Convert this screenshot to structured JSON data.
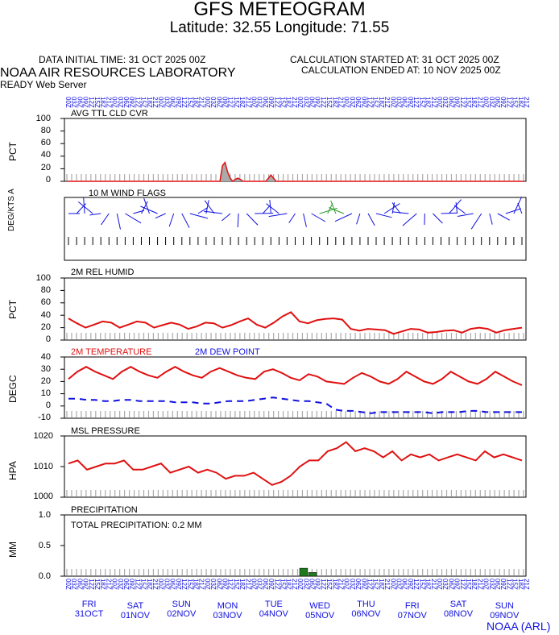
{
  "header": {
    "title": "GFS METEOGRAM",
    "subtitle": "Latitude: 32.55 Longitude:  71.55",
    "data_time": "DATA INITIAL TIME: 31 OCT 2025 00Z",
    "calc_start": "CALCULATION STARTED AT: 31 OCT 2025 00Z",
    "calc_end": "CALCULATION ENDED AT: 10 NOV 2025 00Z",
    "lab": "NOAA AIR RESOURCES LABORATORY",
    "server": "READY Web Server",
    "footer": "NOAA (ARL)"
  },
  "days": [
    {
      "name": "FRI",
      "date": "31OCT"
    },
    {
      "name": "SAT",
      "date": "01NOV"
    },
    {
      "name": "SUN",
      "date": "02NOV"
    },
    {
      "name": "MON",
      "date": "03NOV"
    },
    {
      "name": "TUE",
      "date": "04NOV"
    },
    {
      "name": "WED",
      "date": "05NOV"
    },
    {
      "name": "THU",
      "date": "06NOV"
    },
    {
      "name": "FRI",
      "date": "07NOV"
    },
    {
      "name": "SAT",
      "date": "08NOV"
    },
    {
      "name": "SUN",
      "date": "09NOV"
    }
  ],
  "hour_labels": [
    "00Z",
    "03Z",
    "06Z",
    "09Z",
    "12Z",
    "15Z",
    "18Z",
    "21Z"
  ],
  "panels": {
    "cloud": {
      "title": "AVG TTL CLD CVR",
      "ylabel": "PCT",
      "ticks": [
        "100",
        "80",
        "60",
        "40",
        "20",
        "0"
      ]
    },
    "wind": {
      "title": "10 M  WIND FLAGS",
      "ylabel": "DEG/KTS  A"
    },
    "rh": {
      "title": "2M REL HUMID",
      "ylabel": "PCT",
      "ticks": [
        "100",
        "80",
        "60",
        "40",
        "20",
        "0"
      ]
    },
    "temp": {
      "title_t": "2M TEMPERATURE",
      "title_d": "2M   DEW POINT",
      "ylabel": "DEGC",
      "ticks": [
        "40",
        "30",
        "20",
        "10",
        "0",
        "-10"
      ]
    },
    "mslp": {
      "title": "MSL PRESSURE",
      "ylabel": "HPA",
      "ticks": [
        "1020",
        "1010",
        "1000"
      ]
    },
    "precip": {
      "title": "PRECIPITATION",
      "total": "TOTAL PRECIPITATION:   0.2 MM",
      "ylabel": "MM",
      "ticks": [
        "1.0",
        "0.5",
        "0.0"
      ]
    }
  },
  "chart_data": [
    {
      "type": "area",
      "title": "AVG TTL CLD CVR",
      "ylabel": "PCT",
      "ylim": [
        0,
        100
      ],
      "x_step_hours": 3,
      "values": [
        0,
        0,
        0,
        0,
        0,
        0,
        0,
        0,
        0,
        0,
        0,
        0,
        0,
        0,
        0,
        0,
        0,
        0,
        0,
        0,
        0,
        0,
        0,
        0,
        0,
        0,
        0,
        0,
        0,
        0,
        0,
        0,
        0,
        0,
        0,
        0,
        0,
        0,
        0,
        0,
        0,
        0,
        0,
        0,
        0,
        0,
        0,
        0,
        0,
        0,
        0,
        0,
        0,
        0,
        0,
        0,
        0,
        0,
        0,
        0,
        0,
        25,
        30,
        15,
        5,
        0,
        3,
        5,
        3,
        0,
        0,
        0,
        0,
        0,
        0,
        0,
        0,
        0,
        0,
        5,
        10,
        5,
        0,
        0,
        0,
        0,
        0,
        0,
        0,
        0,
        0,
        0,
        0,
        0,
        0,
        0,
        0,
        0,
        0,
        0,
        0,
        0,
        0,
        0,
        0,
        0,
        0,
        0,
        0,
        0,
        0,
        0,
        0,
        0,
        0,
        0,
        0,
        0,
        0,
        0,
        0,
        0,
        0,
        0,
        0,
        0,
        0,
        0,
        0,
        0,
        0,
        0,
        0,
        0,
        0,
        0,
        0,
        0,
        0,
        0,
        0,
        0,
        0,
        0,
        0,
        0,
        0,
        0,
        0,
        0,
        0,
        0,
        0,
        0,
        0,
        0,
        0,
        0,
        0,
        0,
        0,
        0,
        0,
        0,
        0,
        0,
        0,
        0,
        0,
        0,
        0,
        0,
        0,
        0,
        0,
        0,
        0,
        0,
        0,
        0
      ]
    },
    {
      "type": "line",
      "title": "2M REL HUMID",
      "ylabel": "PCT",
      "ylim": [
        0,
        100
      ],
      "x_step_hours": 3,
      "values": [
        35,
        27,
        20,
        25,
        30,
        28,
        20,
        25,
        30,
        28,
        20,
        24,
        28,
        25,
        18,
        22,
        28,
        27,
        20,
        24,
        30,
        35,
        25,
        20,
        28,
        38,
        45,
        30,
        27,
        32,
        34,
        35,
        33,
        18,
        15,
        18,
        17,
        16,
        10,
        14,
        18,
        17,
        12,
        13,
        15,
        16,
        12,
        18,
        20,
        18,
        12,
        16,
        18,
        20
      ]
    },
    {
      "type": "line",
      "title": "2M TEMPERATURE / 2M DEW POINT",
      "ylabel": "DEGC",
      "ylim": [
        -10,
        40
      ],
      "x_step_hours": 3,
      "series": [
        {
          "name": "2M TEMPERATURE",
          "values": [
            22,
            28,
            32,
            28,
            25,
            22,
            28,
            32,
            28,
            25,
            23,
            28,
            32,
            28,
            25,
            23,
            28,
            31,
            28,
            25,
            23,
            22,
            28,
            30,
            27,
            23,
            21,
            26,
            24,
            20,
            19,
            18,
            23,
            27,
            24,
            20,
            18,
            22,
            28,
            24,
            20,
            18,
            22,
            28,
            24,
            20,
            18,
            22,
            28,
            24,
            20,
            17
          ]
        },
        {
          "name": "2M DEW POINT",
          "values": [
            6,
            6,
            5,
            5,
            4,
            4,
            5,
            5,
            4,
            4,
            4,
            4,
            3,
            3,
            3,
            2,
            2,
            3,
            4,
            4,
            4,
            5,
            6,
            7,
            6,
            5,
            4,
            4,
            3,
            2,
            -3,
            -4,
            -4,
            -5,
            -6,
            -5,
            -5,
            -5,
            -5,
            -5,
            -5,
            -6,
            -5,
            -5,
            -5,
            -4,
            -4,
            -5,
            -5,
            -5,
            -5,
            -5
          ]
        }
      ]
    },
    {
      "type": "line",
      "title": "MSL PRESSURE",
      "ylabel": "HPA",
      "ylim": [
        1000,
        1020
      ],
      "x_step_hours": 3,
      "values": [
        1011,
        1012,
        1009,
        1010,
        1011,
        1011,
        1012,
        1009,
        1009,
        1010,
        1011,
        1008,
        1009,
        1010,
        1008,
        1009,
        1008,
        1006,
        1007,
        1007,
        1008,
        1006,
        1004,
        1005,
        1007,
        1010,
        1012,
        1012,
        1015,
        1016,
        1018,
        1015,
        1016,
        1015,
        1013,
        1015,
        1012,
        1014,
        1013,
        1014,
        1012,
        1013,
        1014,
        1013,
        1012,
        1015,
        1013,
        1014,
        1013,
        1012
      ]
    },
    {
      "type": "bar",
      "title": "PRECIPITATION",
      "ylabel": "MM",
      "ylim": [
        0,
        1.0
      ],
      "total": "0.2 MM",
      "x_step_hours": 3,
      "bars": [
        {
          "index": 26,
          "value": 0.13
        },
        {
          "index": 27,
          "value": 0.06
        }
      ]
    }
  ]
}
